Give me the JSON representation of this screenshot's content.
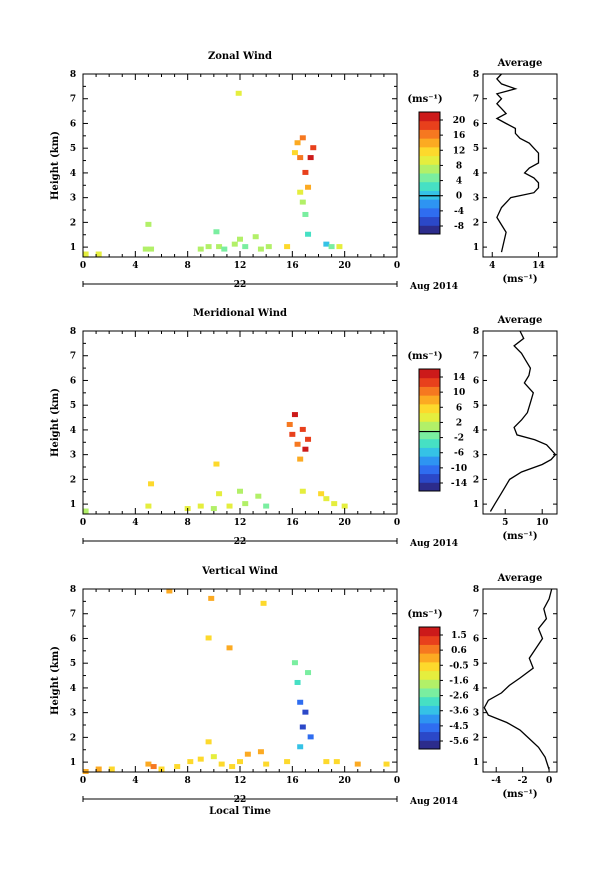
{
  "xlabel": "Local Time",
  "day_label": "22",
  "month_label": "Aug 2014",
  "x_ticks": [
    "0",
    "4",
    "8",
    "12",
    "16",
    "20",
    "0"
  ],
  "y_ticks": [
    "1",
    "2",
    "3",
    "4",
    "5",
    "6",
    "7",
    "8"
  ],
  "ylabel": "Height (km)",
  "unit": "(ms⁻¹)",
  "colormap": [
    "#2c2c8c",
    "#2b48c8",
    "#2f6df0",
    "#2e94f2",
    "#35c2e6",
    "#46e0c4",
    "#7aeea0",
    "#b2f068",
    "#e5ee3e",
    "#fdd92c",
    "#fcaa22",
    "#f67820",
    "#e8401c",
    "#cc1a1a"
  ],
  "chart_data": [
    {
      "type": "heatmap",
      "title": "Zonal Wind",
      "ylabel": "Height (km)",
      "xlabel": "",
      "x_range": [
        0,
        24
      ],
      "ylim": [
        0.6,
        8.0
      ],
      "colorbar": {
        "ticks": [
          "20",
          "16",
          "12",
          "8",
          "4",
          "0",
          "-4",
          "-8"
        ],
        "range": [
          -10,
          22
        ],
        "zero": 0
      },
      "cells": [
        [
          0.2,
          0.7,
          8
        ],
        [
          1.2,
          0.7,
          8
        ],
        [
          4.8,
          0.9,
          7
        ],
        [
          5.2,
          0.9,
          7
        ],
        [
          5.0,
          1.9,
          7
        ],
        [
          9.0,
          0.9,
          7
        ],
        [
          9.6,
          1.0,
          7
        ],
        [
          10.2,
          1.6,
          6
        ],
        [
          10.4,
          1.0,
          7
        ],
        [
          10.8,
          0.9,
          6
        ],
        [
          11.6,
          1.1,
          7
        ],
        [
          12.0,
          1.3,
          7
        ],
        [
          12.4,
          1.0,
          6
        ],
        [
          13.2,
          1.4,
          7
        ],
        [
          13.6,
          0.9,
          7
        ],
        [
          14.2,
          1.0,
          7
        ],
        [
          11.9,
          7.2,
          8
        ],
        [
          16.2,
          4.8,
          9
        ],
        [
          16.4,
          5.2,
          10
        ],
        [
          16.6,
          4.6,
          11
        ],
        [
          16.8,
          5.4,
          11
        ],
        [
          16.6,
          3.2,
          8
        ],
        [
          16.8,
          2.8,
          7
        ],
        [
          17.0,
          4.0,
          12
        ],
        [
          17.2,
          3.4,
          10
        ],
        [
          17.4,
          4.6,
          13
        ],
        [
          17.6,
          5.0,
          12
        ],
        [
          17.0,
          2.3,
          6
        ],
        [
          17.2,
          1.5,
          5
        ],
        [
          18.6,
          1.1,
          4
        ],
        [
          19.0,
          1.0,
          6
        ],
        [
          19.6,
          1.0,
          8
        ],
        [
          15.6,
          1.0,
          9
        ]
      ],
      "profile": {
        "xlim": [
          2,
          18
        ],
        "xticks": [
          "4",
          "14"
        ],
        "x": [
          6,
          5,
          6,
          9,
          5,
          6,
          5,
          6,
          7,
          5,
          7,
          9,
          9,
          10,
          12,
          13,
          14,
          14,
          14,
          12,
          11,
          13,
          14,
          14,
          13,
          8,
          6,
          5,
          7,
          6
        ],
        "y": [
          8.0,
          7.8,
          7.6,
          7.4,
          7.2,
          7.0,
          6.8,
          6.6,
          6.4,
          6.2,
          6.0,
          5.8,
          5.6,
          5.4,
          5.2,
          5.0,
          4.8,
          4.6,
          4.4,
          4.2,
          4.0,
          3.8,
          3.6,
          3.4,
          3.2,
          3.0,
          2.6,
          2.2,
          1.6,
          0.8
        ]
      }
    },
    {
      "type": "heatmap",
      "title": "Meridional Wind",
      "ylabel": "Height (km)",
      "xlabel": "",
      "x_range": [
        0,
        24
      ],
      "ylim": [
        0.6,
        8.0
      ],
      "colorbar": {
        "ticks": [
          "14",
          "10",
          "6",
          "2",
          "-2",
          "-6",
          "-10",
          "-14"
        ],
        "range": [
          -16,
          16
        ],
        "zero": 0
      },
      "cells": [
        [
          0.2,
          0.7,
          7
        ],
        [
          5.0,
          0.9,
          8
        ],
        [
          5.2,
          1.8,
          9
        ],
        [
          8.0,
          0.8,
          8
        ],
        [
          9.0,
          0.9,
          8
        ],
        [
          10.0,
          0.8,
          7
        ],
        [
          10.2,
          2.6,
          9
        ],
        [
          10.4,
          1.4,
          8
        ],
        [
          11.2,
          0.9,
          8
        ],
        [
          12.0,
          1.5,
          7
        ],
        [
          12.4,
          1.0,
          7
        ],
        [
          13.4,
          1.3,
          7
        ],
        [
          14.0,
          0.9,
          6
        ],
        [
          15.8,
          4.2,
          11
        ],
        [
          16.0,
          3.8,
          12
        ],
        [
          16.2,
          4.6,
          13
        ],
        [
          16.4,
          3.4,
          11
        ],
        [
          16.6,
          2.8,
          10
        ],
        [
          16.8,
          4.0,
          12
        ],
        [
          17.0,
          3.2,
          13
        ],
        [
          17.2,
          3.6,
          12
        ],
        [
          16.8,
          1.5,
          8
        ],
        [
          18.2,
          1.4,
          9
        ],
        [
          18.6,
          1.2,
          8
        ],
        [
          19.2,
          1.0,
          8
        ],
        [
          20.0,
          0.9,
          8
        ]
      ],
      "profile": {
        "xlim": [
          2,
          12
        ],
        "xticks": [
          "5",
          "10"
        ],
        "x": [
          7,
          7.5,
          6.2,
          7.2,
          7.8,
          8.4,
          8.2,
          7.6,
          8.8,
          8.4,
          8.0,
          7.2,
          6.2,
          6.6,
          9.0,
          10.6,
          11.2,
          11.8,
          11.2,
          10.0,
          7.2,
          5.6,
          5.0,
          4.4,
          3.6,
          3.0
        ],
        "y": [
          8.0,
          7.7,
          7.4,
          7.1,
          6.8,
          6.5,
          6.2,
          5.9,
          5.5,
          5.1,
          4.7,
          4.4,
          4.1,
          3.8,
          3.6,
          3.4,
          3.2,
          3.0,
          2.8,
          2.6,
          2.3,
          2.0,
          1.7,
          1.4,
          1.0,
          0.7
        ]
      }
    },
    {
      "type": "heatmap",
      "title": "Vertical Wind",
      "ylabel": "Height (km)",
      "xlabel": "Local Time",
      "x_range": [
        0,
        24
      ],
      "ylim": [
        0.6,
        8.0
      ],
      "colorbar": {
        "ticks": [
          "1.5",
          "0.6",
          "-0.5",
          "-1.6",
          "-2.6",
          "-3.6",
          "-4.5",
          "-5.6"
        ],
        "range": [
          -6,
          2
        ],
        "zero": null
      },
      "cells": [
        [
          0.2,
          0.6,
          10
        ],
        [
          1.2,
          0.7,
          10
        ],
        [
          2.2,
          0.7,
          9
        ],
        [
          5.0,
          0.9,
          10
        ],
        [
          5.4,
          0.8,
          11
        ],
        [
          6.0,
          0.7,
          9
        ],
        [
          7.2,
          0.8,
          9
        ],
        [
          8.2,
          1.0,
          9
        ],
        [
          9.0,
          1.1,
          9
        ],
        [
          9.6,
          1.8,
          9
        ],
        [
          10.0,
          1.2,
          8
        ],
        [
          10.6,
          0.9,
          9
        ],
        [
          11.4,
          0.8,
          9
        ],
        [
          12.0,
          1.0,
          9
        ],
        [
          12.6,
          1.3,
          10
        ],
        [
          13.6,
          1.4,
          10
        ],
        [
          14.0,
          0.9,
          9
        ],
        [
          6.6,
          7.9,
          10
        ],
        [
          9.8,
          7.6,
          10
        ],
        [
          13.8,
          7.4,
          9
        ],
        [
          15.6,
          1.0,
          9
        ],
        [
          16.2,
          5.0,
          6
        ],
        [
          16.4,
          4.2,
          5
        ],
        [
          16.6,
          3.4,
          2
        ],
        [
          16.8,
          2.4,
          1
        ],
        [
          17.0,
          3.0,
          1
        ],
        [
          17.2,
          4.6,
          6
        ],
        [
          17.4,
          2.0,
          2
        ],
        [
          16.6,
          1.6,
          4
        ],
        [
          18.6,
          1.0,
          9
        ],
        [
          19.4,
          1.0,
          9
        ],
        [
          21.0,
          0.9,
          10
        ],
        [
          23.2,
          0.9,
          9
        ],
        [
          9.6,
          6.0,
          9
        ],
        [
          11.2,
          5.6,
          10
        ]
      ],
      "profile": {
        "xlim": [
          -5,
          0.6
        ],
        "xticks": [
          "-4",
          "-2",
          "0"
        ],
        "x": [
          0.2,
          0.0,
          -0.4,
          -0.2,
          -0.8,
          -0.5,
          -1.0,
          -1.5,
          -1.2,
          -2.2,
          -3.0,
          -3.6,
          -4.6,
          -4.9,
          -4.6,
          -3.2,
          -2.2,
          -1.6,
          -0.8,
          -0.3,
          0.0
        ],
        "y": [
          8.0,
          7.6,
          7.2,
          6.8,
          6.4,
          6.0,
          5.6,
          5.2,
          4.8,
          4.4,
          4.1,
          3.8,
          3.5,
          3.2,
          2.9,
          2.6,
          2.3,
          2.0,
          1.6,
          1.2,
          0.7
        ]
      }
    }
  ]
}
